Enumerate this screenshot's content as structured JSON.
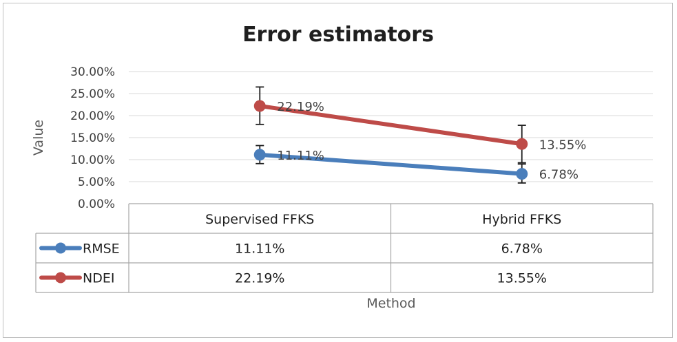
{
  "chart_data": {
    "type": "line",
    "title": "Error estimators",
    "xlabel": "Method",
    "ylabel": "Value",
    "categories": [
      "Supervised FFKS",
      "Hybrid FFKS"
    ],
    "ylim": [
      0,
      0.3
    ],
    "y_ticks": [
      "0.00%",
      "5.00%",
      "10.00%",
      "15.00%",
      "20.00%",
      "25.00%",
      "30.00%"
    ],
    "grid": true,
    "legend": "data-table",
    "series": [
      {
        "name": "RMSE",
        "color": "#4a7ebb",
        "values": [
          0.1111,
          0.0678
        ],
        "labels": [
          "11.11%",
          "6.78%"
        ],
        "error_low": [
          0.091,
          0.047
        ],
        "error_high": [
          0.132,
          0.09
        ]
      },
      {
        "name": "NDEI",
        "color": "#be4b48",
        "values": [
          0.2219,
          0.1355
        ],
        "labels": [
          "22.19%",
          "13.55%"
        ],
        "error_low": [
          0.18,
          0.093
        ],
        "error_high": [
          0.265,
          0.178
        ]
      }
    ]
  }
}
